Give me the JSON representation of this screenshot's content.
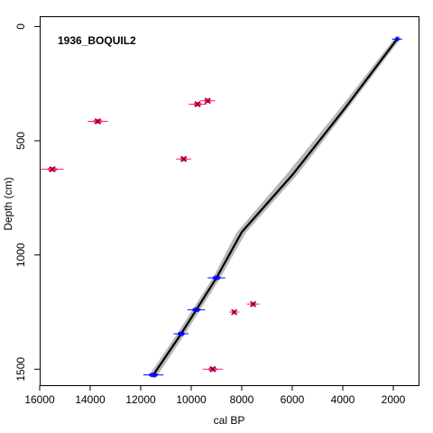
{
  "chart_data": {
    "type": "scatter",
    "title": "1936_BOQUIL2",
    "xlabel": "cal BP",
    "ylabel": "Depth (cm)",
    "xlim": [
      16000,
      1000
    ],
    "ylim": [
      1570,
      -45
    ],
    "x_reversed": true,
    "y_reversed": true,
    "xticks": [
      16000,
      14000,
      12000,
      10000,
      8000,
      6000,
      4000,
      2000
    ],
    "yticks": [
      0,
      500,
      1000,
      1500
    ],
    "grid": false,
    "legend": "none",
    "age_model": {
      "median": [
        {
          "age": 1850,
          "depth": 55
        },
        {
          "age": 4000,
          "depth": 370
        },
        {
          "age": 6000,
          "depth": 650
        },
        {
          "age": 8000,
          "depth": 900
        },
        {
          "age": 9000,
          "depth": 1100
        },
        {
          "age": 9800,
          "depth": 1240
        },
        {
          "age": 10400,
          "depth": 1345
        },
        {
          "age": 11500,
          "depth": 1525
        }
      ],
      "upper": [
        {
          "age": 1820,
          "depth": 52
        },
        {
          "age": 3950,
          "depth": 365
        },
        {
          "age": 5850,
          "depth": 640
        },
        {
          "age": 7900,
          "depth": 895
        },
        {
          "age": 8950,
          "depth": 1100
        },
        {
          "age": 9750,
          "depth": 1240
        },
        {
          "age": 10350,
          "depth": 1345
        },
        {
          "age": 11450,
          "depth": 1528
        }
      ],
      "lower": [
        {
          "age": 1880,
          "depth": 58
        },
        {
          "age": 4150,
          "depth": 380
        },
        {
          "age": 6250,
          "depth": 665
        },
        {
          "age": 8150,
          "depth": 910
        },
        {
          "age": 9050,
          "depth": 1102
        },
        {
          "age": 9850,
          "depth": 1240
        },
        {
          "age": 10450,
          "depth": 1345
        },
        {
          "age": 11550,
          "depth": 1525
        }
      ]
    },
    "dates": [
      {
        "age": 1850,
        "depth": 55,
        "range": 400,
        "status": "accepted"
      },
      {
        "age": 9000,
        "depth": 1100,
        "range": 700,
        "status": "accepted"
      },
      {
        "age": 9800,
        "depth": 1240,
        "range": 700,
        "status": "accepted"
      },
      {
        "age": 10400,
        "depth": 1345,
        "range": 600,
        "status": "accepted"
      },
      {
        "age": 11500,
        "depth": 1525,
        "range": 800,
        "status": "accepted"
      },
      {
        "age": 9350,
        "depth": 325,
        "range": 600,
        "status": "rejected"
      },
      {
        "age": 9750,
        "depth": 340,
        "range": 700,
        "status": "rejected"
      },
      {
        "age": 13700,
        "depth": 415,
        "range": 800,
        "status": "rejected"
      },
      {
        "age": 15500,
        "depth": 625,
        "range": 900,
        "status": "rejected"
      },
      {
        "age": 10300,
        "depth": 580,
        "range": 600,
        "status": "rejected"
      },
      {
        "age": 7550,
        "depth": 1215,
        "range": 500,
        "status": "rejected"
      },
      {
        "age": 8300,
        "depth": 1250,
        "range": 400,
        "status": "rejected"
      },
      {
        "age": 9150,
        "depth": 1500,
        "range": 800,
        "status": "rejected"
      }
    ],
    "colors": {
      "envelope": "#b8b8b8",
      "median": "#000000",
      "accepted": "#0000ff",
      "rejected": "#ff1493",
      "cross": "#8b0000"
    }
  }
}
